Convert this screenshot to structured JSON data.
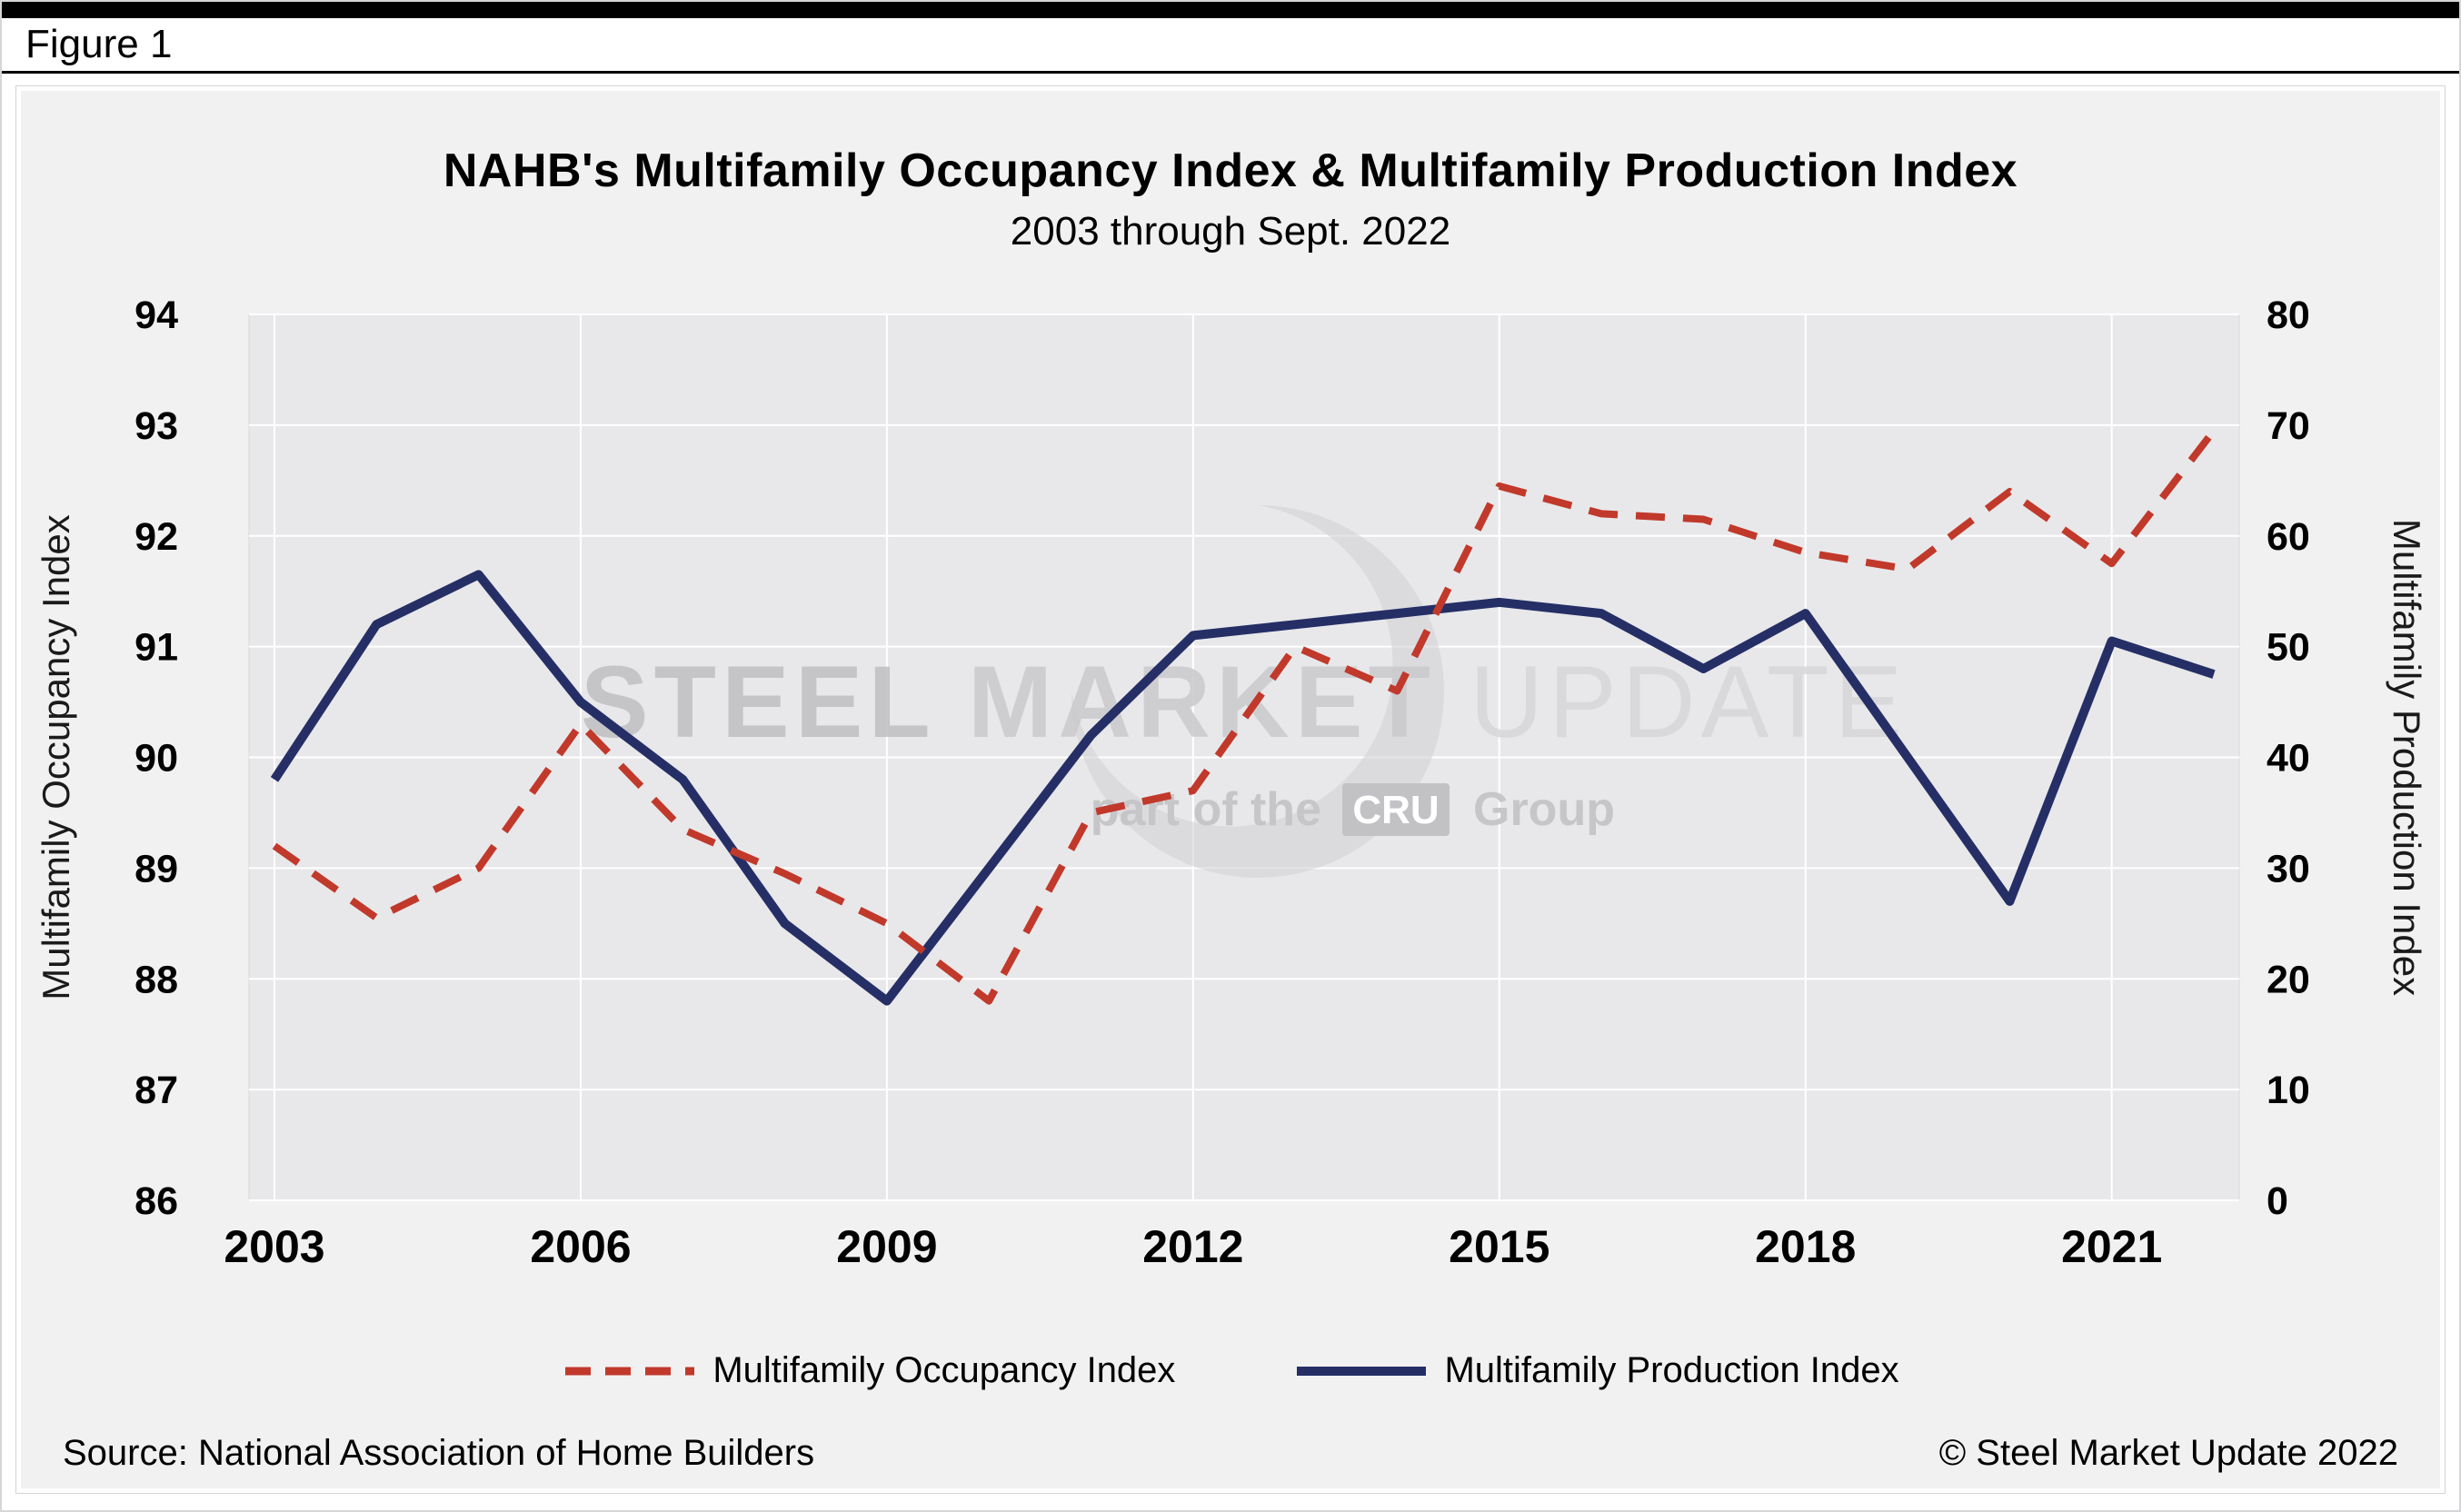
{
  "figure_label": "Figure 1",
  "chart_data": {
    "type": "line",
    "title": "NAHB's Multifamily Occupancy Index & Multifamily Production Index",
    "subtitle": "2003 through Sept. 2022",
    "x": [
      2003,
      2004,
      2005,
      2006,
      2007,
      2008,
      2009,
      2010,
      2011,
      2012,
      2013,
      2014,
      2015,
      2016,
      2017,
      2018,
      2019,
      2020,
      2021,
      2022
    ],
    "x_tick_years": [
      2003,
      2006,
      2009,
      2012,
      2015,
      2018,
      2021
    ],
    "left_axis": {
      "label": "Multifamily Occupancy Index",
      "min": 86,
      "max": 94,
      "ticks": [
        86,
        87,
        88,
        89,
        90,
        91,
        92,
        93,
        94
      ]
    },
    "right_axis": {
      "label": "Multifamily Production Index",
      "min": 0,
      "max": 80,
      "ticks": [
        0,
        10,
        20,
        30,
        40,
        50,
        60,
        70,
        80
      ]
    },
    "grid": true,
    "legend_position": "bottom",
    "series": [
      {
        "name": "Multifamily Occupancy Index",
        "axis": "left",
        "color": "#c1392b",
        "style": "dashed",
        "values": [
          89.2,
          88.55,
          89.0,
          90.3,
          89.35,
          88.95,
          88.5,
          87.8,
          89.5,
          89.7,
          91.0,
          90.6,
          92.45,
          92.2,
          92.15,
          91.85,
          91.7,
          92.4,
          91.75,
          92.95
        ]
      },
      {
        "name": "Multifamily Production Index",
        "axis": "right",
        "color": "#252f66",
        "style": "solid",
        "values": [
          38,
          52,
          56.5,
          45,
          38,
          25,
          18,
          30,
          42,
          51,
          52,
          53,
          54,
          53,
          48,
          53,
          40,
          27,
          50.5,
          47.5
        ]
      }
    ],
    "colors": {
      "plot_background": "#e8e8ea",
      "gridline": "#ffffff",
      "panel_background": "#f1f1f2"
    }
  },
  "watermark": {
    "word1": "STEEL",
    "word2": "MARKET",
    "word3": "UPDATE",
    "line2_prefix": "part of the",
    "line2_box": "CRU",
    "line2_suffix": "Group"
  },
  "footer": {
    "source": "Source: National Association of Home Builders",
    "copyright": "© Steel Market Update 2022"
  }
}
